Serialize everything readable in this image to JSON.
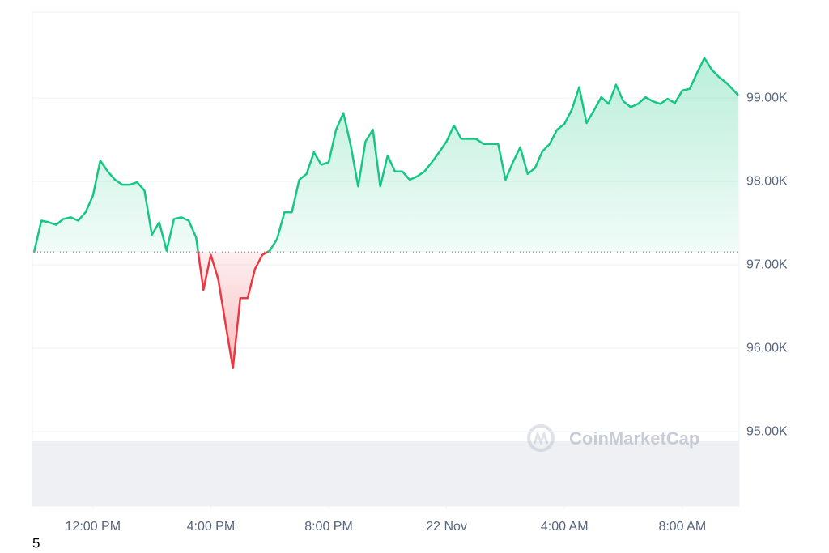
{
  "chart_data": {
    "type": "line",
    "x": [
      10,
      10.25,
      10.5,
      10.75,
      11,
      11.25,
      11.5,
      11.75,
      12,
      12.25,
      12.5,
      12.75,
      13,
      13.25,
      13.5,
      13.75,
      14,
      14.25,
      14.5,
      14.75,
      15,
      15.25,
      15.5,
      15.75,
      16,
      16.25,
      16.5,
      16.75,
      17,
      17.25,
      17.5,
      17.75,
      18,
      18.25,
      18.5,
      18.75,
      19,
      19.25,
      19.5,
      19.75,
      20,
      20.25,
      20.5,
      20.75,
      21,
      21.25,
      21.5,
      21.75,
      22,
      22.25,
      22.5,
      22.75,
      23,
      23.25,
      23.5,
      23.75,
      24,
      24.25,
      24.5,
      24.75,
      25,
      25.25,
      25.5,
      25.75,
      26,
      26.25,
      26.5,
      26.75,
      27,
      27.25,
      27.5,
      27.75,
      28,
      28.25,
      28.5,
      28.75,
      29,
      29.25,
      29.5,
      29.75,
      30,
      30.25,
      30.5,
      30.75,
      31,
      31.25,
      31.5,
      31.75,
      32,
      32.25,
      32.5,
      32.75,
      33,
      33.25,
      33.5,
      33.75,
      33.9
    ],
    "series": [
      {
        "color": "#16c784",
        "negative_color": "#ea3943",
        "values": [
          97150,
          97530,
          97510,
          97480,
          97550,
          97570,
          97530,
          97630,
          97830,
          98250,
          98120,
          98020,
          97960,
          97960,
          97990,
          97890,
          97360,
          97510,
          97170,
          97550,
          97570,
          97530,
          97330,
          96700,
          97120,
          96830,
          96290,
          95760,
          96600,
          96600,
          96950,
          97120,
          97170,
          97310,
          97630,
          97630,
          98020,
          98090,
          98350,
          98200,
          98230,
          98620,
          98820,
          98430,
          97940,
          98480,
          98620,
          97940,
          98310,
          98120,
          98120,
          98020,
          98060,
          98120,
          98230,
          98350,
          98480,
          98670,
          98510,
          98510,
          98510,
          98450,
          98450,
          98450,
          98020,
          98230,
          98410,
          98090,
          98160,
          98360,
          98450,
          98620,
          98690,
          98860,
          99130,
          98700,
          98850,
          99010,
          98930,
          99160,
          98960,
          98890,
          98930,
          99010,
          98960,
          98930,
          98990,
          98940,
          99090,
          99110,
          99300,
          99480,
          99340,
          99250,
          99180,
          99090,
          99030
        ]
      }
    ],
    "baseline": 97155,
    "xlim": [
      10,
      34
    ],
    "xticks": [
      {
        "value": 12,
        "label": "12:00 PM"
      },
      {
        "value": 16,
        "label": "4:00 PM"
      },
      {
        "value": 20,
        "label": "8:00 PM"
      },
      {
        "value": 24,
        "label": "22 Nov"
      },
      {
        "value": 28,
        "label": "4:00 AM"
      },
      {
        "value": 32,
        "label": "8:00 AM"
      }
    ],
    "ylim": [
      94107,
      100030
    ],
    "yticks": [
      {
        "value": 95000,
        "label": "95.00K"
      },
      {
        "value": 96000,
        "label": "96.00K"
      },
      {
        "value": 97000,
        "label": "97.00K"
      },
      {
        "value": 98000,
        "label": "98.00K"
      },
      {
        "value": 99000,
        "label": "99.00K"
      }
    ],
    "grid": true,
    "watermark": "CoinMarketCap"
  },
  "footer": "5"
}
